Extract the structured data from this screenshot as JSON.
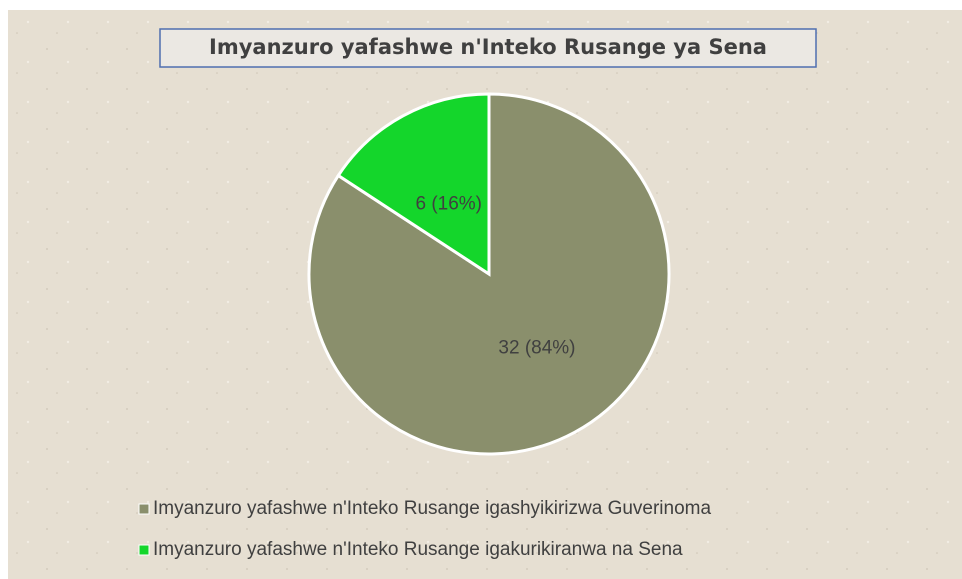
{
  "chart_data": {
    "type": "pie",
    "title": "Imyanzuro yafashwe n'Inteko Rusange ya Sena",
    "categories": [
      "Imyanzuro yafashwe n'Inteko Rusange igashyikirizwa Guverinoma",
      "Imyanzuro yafashwe n'Inteko Rusange igakurikiranwa na Sena"
    ],
    "values": [
      32,
      6
    ],
    "value_labels": [
      "32 (84%)",
      "6 (16%)"
    ],
    "colors": [
      "#8a8f6c",
      "#14d62b"
    ]
  }
}
